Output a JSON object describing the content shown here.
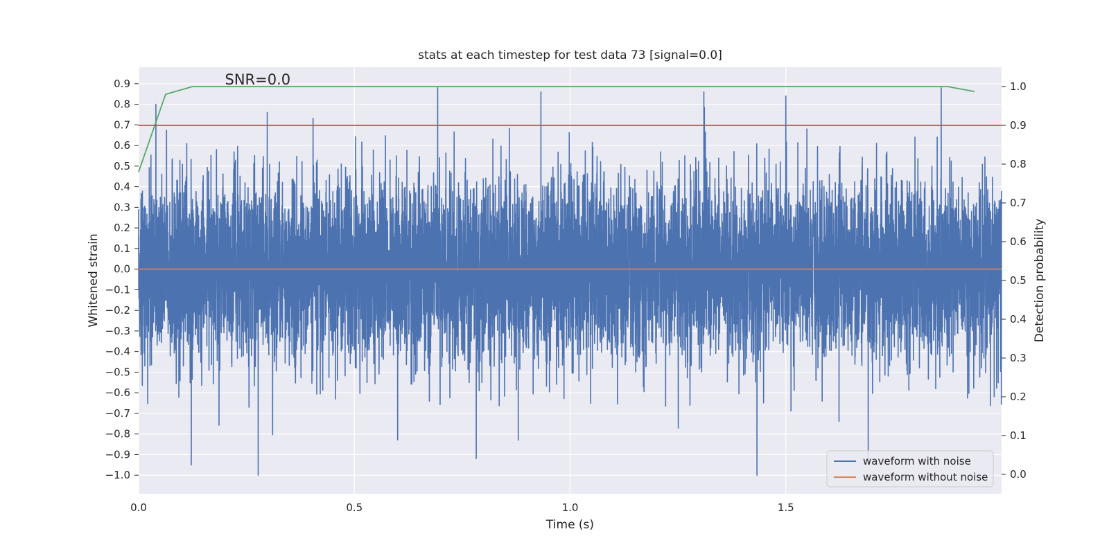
{
  "chart_data": {
    "type": "line",
    "title": "stats at each timestep for test data 73 [signal=0.0]",
    "xlabel": "Time (s)",
    "ylabel": "Whitened strain",
    "y2label": "Detection probability",
    "annotation": "SNR=0.0",
    "xlim": [
      0.0,
      2.0
    ],
    "ylim": [
      -1.09,
      0.98
    ],
    "y2lim": [
      -0.05,
      1.05
    ],
    "grid": true,
    "legend_location": "lower-right",
    "x_ticks": [
      {
        "value": 0.0,
        "label": "0.0"
      },
      {
        "value": 0.5,
        "label": "0.5"
      },
      {
        "value": 1.0,
        "label": "1.0"
      },
      {
        "value": 1.5,
        "label": "1.5"
      }
    ],
    "y_ticks": [
      {
        "value": 0.9,
        "label": "0.9"
      },
      {
        "value": 0.8,
        "label": "0.8"
      },
      {
        "value": 0.7,
        "label": "0.7"
      },
      {
        "value": 0.6,
        "label": "0.6"
      },
      {
        "value": 0.5,
        "label": "0.5"
      },
      {
        "value": 0.4,
        "label": "0.4"
      },
      {
        "value": 0.3,
        "label": "0.3"
      },
      {
        "value": 0.2,
        "label": "0.2"
      },
      {
        "value": 0.1,
        "label": "0.1"
      },
      {
        "value": 0.0,
        "label": "0.0"
      },
      {
        "value": -0.1,
        "label": "−0.1"
      },
      {
        "value": -0.2,
        "label": "−0.2"
      },
      {
        "value": -0.3,
        "label": "−0.3"
      },
      {
        "value": -0.4,
        "label": "−0.4"
      },
      {
        "value": -0.5,
        "label": "−0.5"
      },
      {
        "value": -0.6,
        "label": "−0.6"
      },
      {
        "value": -0.7,
        "label": "−0.7"
      },
      {
        "value": -0.8,
        "label": "−0.8"
      },
      {
        "value": -0.9,
        "label": "−0.9"
      },
      {
        "value": -1.0,
        "label": "−1.0"
      }
    ],
    "y2_ticks": [
      {
        "value": 1.0,
        "label": "1.0"
      },
      {
        "value": 0.9,
        "label": "0.9"
      },
      {
        "value": 0.8,
        "label": "0.8"
      },
      {
        "value": 0.7,
        "label": "0.7"
      },
      {
        "value": 0.6,
        "label": "0.6"
      },
      {
        "value": 0.5,
        "label": "0.5"
      },
      {
        "value": 0.4,
        "label": "0.4"
      },
      {
        "value": 0.3,
        "label": "0.3"
      },
      {
        "value": 0.2,
        "label": "0.2"
      },
      {
        "value": 0.1,
        "label": "0.1"
      },
      {
        "value": 0.0,
        "label": "0.0"
      }
    ],
    "series": [
      {
        "name": "waveform with noise",
        "axis": "left",
        "color": "#4c72b0",
        "description": "whitened noise time series, 4096 Hz over 2 s, range approx -1.0 to 0.88",
        "sample_rate": 4096,
        "duration": 2.0,
        "highlights": [
          {
            "x": 0.277,
            "y": -1.0
          },
          {
            "x": 0.122,
            "y": -0.95
          },
          {
            "x": 0.693,
            "y": 0.88
          },
          {
            "x": 1.433,
            "y": -1.0
          },
          {
            "x": 1.691,
            "y": -0.94
          },
          {
            "x": 1.86,
            "y": 0.88
          },
          {
            "x": 1.5,
            "y": 0.84
          },
          {
            "x": 1.31,
            "y": 0.86
          },
          {
            "x": 0.298,
            "y": 0.76
          },
          {
            "x": 0.04,
            "y": 0.8
          },
          {
            "x": 0.88,
            "y": -0.83
          }
        ]
      },
      {
        "name": "waveform without noise",
        "axis": "left",
        "color": "#dd8452",
        "x": [
          0.0,
          2.0
        ],
        "y": [
          0.0,
          0.0
        ]
      },
      {
        "name": "detection probability",
        "axis": "right",
        "color": "#55a868",
        "x": [
          0.0,
          0.0625,
          0.125,
          0.1875,
          1.8125,
          1.875,
          1.9375
        ],
        "y": [
          0.78,
          0.98,
          1.0,
          1.0,
          1.0,
          1.0,
          0.987
        ]
      },
      {
        "name": "threshold",
        "axis": "right",
        "color": "#c44e52",
        "x": [
          0.0,
          2.0
        ],
        "y": [
          0.9,
          0.9
        ]
      }
    ],
    "annotation_at": {
      "x": 0.2,
      "y": 0.9
    }
  },
  "colors": {
    "plot_background": "#eaeaf2",
    "grid": "#ffffff",
    "noise": "#4c72b0",
    "clean": "#dd8452",
    "probability": "#55a868",
    "threshold": "#c44e52"
  }
}
